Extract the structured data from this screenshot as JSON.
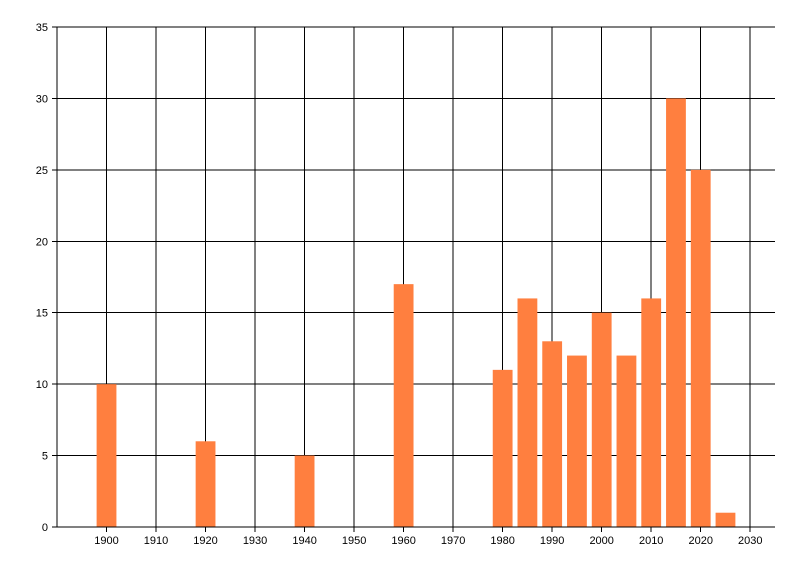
{
  "chart_data": {
    "type": "bar",
    "title": "",
    "xlabel": "",
    "ylabel": "",
    "x": [
      1900,
      1920,
      1940,
      1960,
      1980,
      1985,
      1990,
      1995,
      2000,
      2005,
      2010,
      2015,
      2020,
      2025
    ],
    "values": [
      10,
      6,
      5,
      17,
      11,
      16,
      13,
      12,
      15,
      12,
      16,
      30,
      25,
      1
    ],
    "xlim": [
      1890,
      2035
    ],
    "ylim": [
      0,
      35
    ],
    "x_ticks": [
      1900,
      1910,
      1920,
      1930,
      1940,
      1950,
      1960,
      1970,
      1980,
      1990,
      2000,
      2010,
      2020,
      2030
    ],
    "y_ticks": [
      0,
      5,
      10,
      15,
      20,
      25,
      30,
      35
    ],
    "bar_width_years": 4,
    "grid": true,
    "legend": "none",
    "colors": {
      "bar": "#ff7f3f",
      "grid": "#000000",
      "axis": "#000000",
      "background": "#ffffff"
    }
  }
}
